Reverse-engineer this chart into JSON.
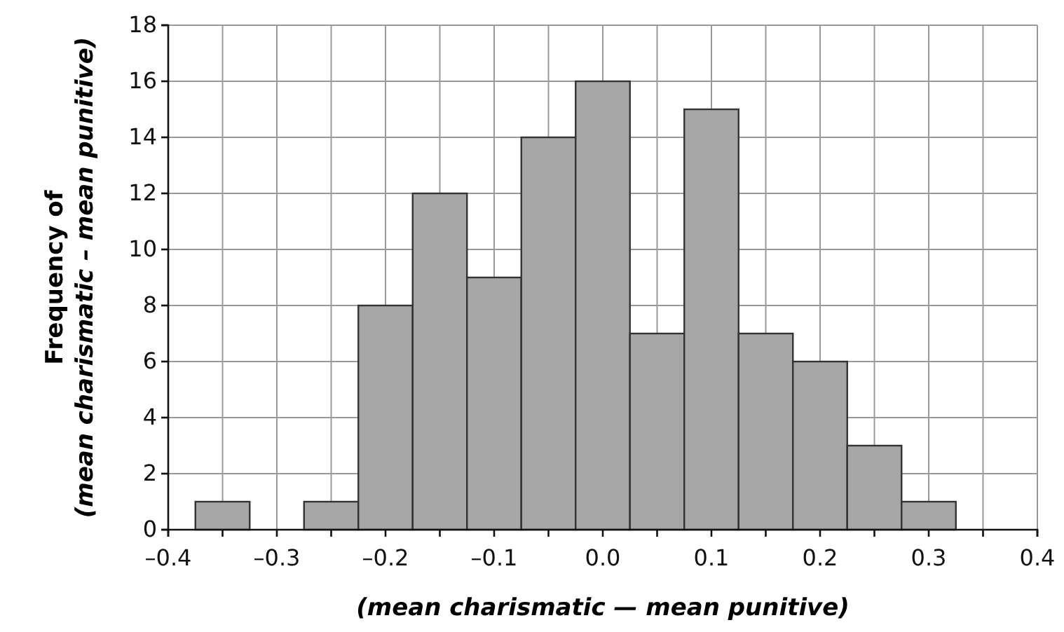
{
  "chart_data": {
    "type": "histogram",
    "xlabel": "(mean charismatic — mean punitive)",
    "ylabel": "Frequency of\n(mean charismatic – mean punitive)",
    "bins": [
      -0.375,
      -0.325,
      -0.275,
      -0.225,
      -0.175,
      -0.125,
      -0.075,
      -0.025,
      0.025,
      0.075,
      0.125,
      0.175,
      0.225,
      0.275,
      0.325
    ],
    "values": [
      1,
      0,
      1,
      8,
      12,
      9,
      14,
      16,
      7,
      15,
      7,
      6,
      3,
      1
    ],
    "color": "#a6a6a6",
    "xlim": [
      -0.4,
      0.4
    ],
    "xticks": [
      {
        "value": -0.4,
        "label": "–0.4"
      },
      {
        "value": -0.35,
        "label": null
      },
      {
        "value": -0.3,
        "label": "–0.3"
      },
      {
        "value": -0.25,
        "label": null
      },
      {
        "value": -0.2,
        "label": "–0.2"
      },
      {
        "value": -0.15,
        "label": null
      },
      {
        "value": -0.1,
        "label": "–0.1"
      },
      {
        "value": -0.05,
        "label": null
      },
      {
        "value": 0,
        "label": "0.0"
      },
      {
        "value": 0.05,
        "label": null
      },
      {
        "value": 0.1,
        "label": "0.1"
      },
      {
        "value": 0.15,
        "label": null
      },
      {
        "value": 0.2,
        "label": "0.2"
      },
      {
        "value": 0.25,
        "label": null
      },
      {
        "value": 0.3,
        "label": "0.3"
      },
      {
        "value": 0.35,
        "label": null
      },
      {
        "value": 0.4,
        "label": "0.4"
      }
    ],
    "ylim": [
      0,
      18
    ],
    "yticks": [
      0,
      2,
      4,
      6,
      8,
      10,
      12,
      14,
      16,
      18
    ],
    "grid": true
  }
}
